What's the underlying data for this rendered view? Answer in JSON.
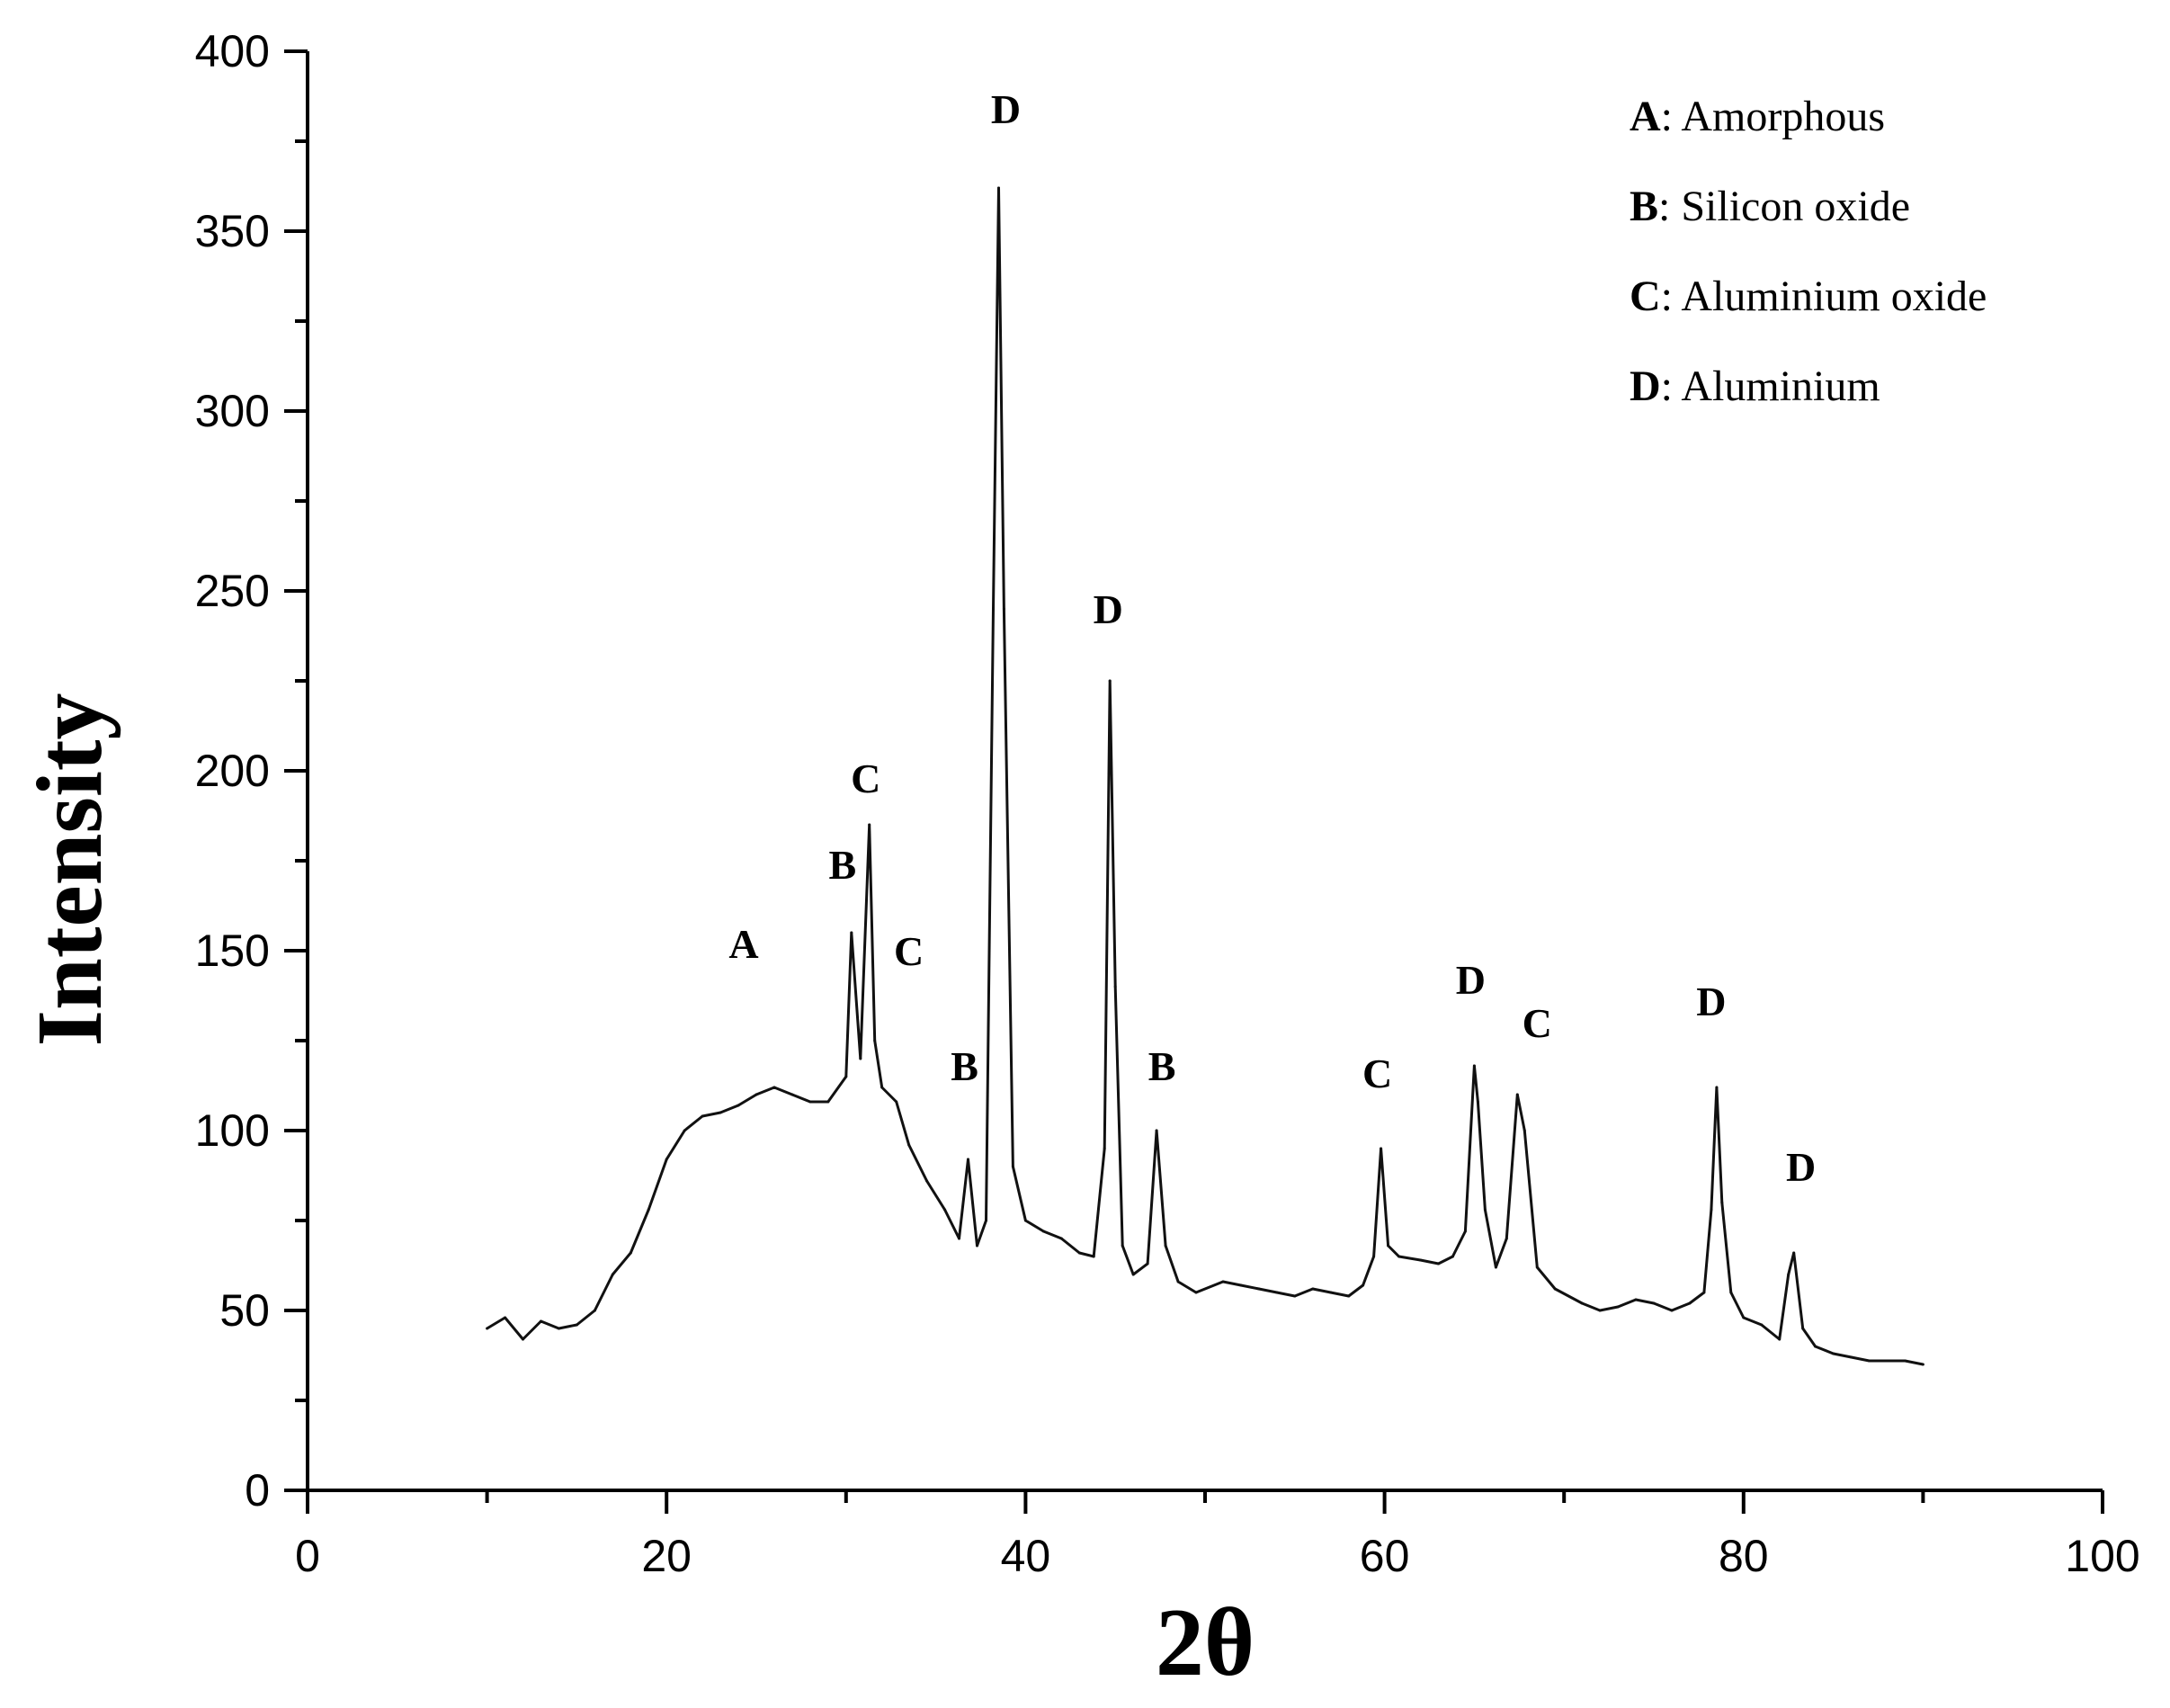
{
  "chart_data": {
    "type": "line",
    "xlabel": "2θ",
    "ylabel": "Intensity",
    "xlim": [
      0,
      100
    ],
    "ylim": [
      0,
      400
    ],
    "x_ticks": [
      0,
      20,
      40,
      60,
      80,
      100
    ],
    "y_ticks": [
      0,
      50,
      100,
      150,
      200,
      250,
      300,
      350,
      400
    ],
    "grid": false,
    "series": [
      {
        "x": [
          10,
          11,
          12,
          13,
          14,
          15,
          16,
          17,
          18,
          19,
          20,
          21,
          22,
          23,
          24,
          25,
          26,
          27,
          28,
          29,
          30,
          30.3,
          30.8,
          31.3,
          31.6,
          32,
          32.8,
          33.5,
          34.5,
          35.5,
          36.3,
          36.8,
          37.3,
          37.8,
          38.2,
          38.5,
          38.8,
          39.3,
          40,
          41,
          42,
          43,
          43.8,
          44.4,
          44.7,
          45,
          45.4,
          46,
          46.8,
          47.3,
          47.8,
          48.5,
          49.5,
          51,
          52,
          53,
          54,
          55,
          56,
          57,
          58,
          58.8,
          59.4,
          59.8,
          60.2,
          60.8,
          62,
          63,
          63.8,
          64.5,
          65,
          65.2,
          65.6,
          66.2,
          66.8,
          67.4,
          67.8,
          68.5,
          69.5,
          71,
          72,
          73,
          74,
          75,
          76,
          77,
          77.8,
          78.2,
          78.5,
          78.8,
          79.3,
          80,
          81,
          82,
          82.5,
          82.8,
          83.3,
          84,
          85,
          86,
          87,
          88,
          89,
          90
        ],
        "y": [
          45,
          48,
          42,
          47,
          45,
          46,
          50,
          60,
          66,
          78,
          92,
          100,
          104,
          105,
          107,
          110,
          112,
          110,
          108,
          108,
          115,
          155,
          120,
          185,
          125,
          112,
          108,
          96,
          86,
          78,
          70,
          92,
          68,
          75,
          245,
          362,
          245,
          90,
          75,
          72,
          70,
          66,
          65,
          95,
          225,
          140,
          68,
          60,
          63,
          100,
          68,
          58,
          55,
          58,
          57,
          56,
          55,
          54,
          56,
          55,
          54,
          57,
          65,
          95,
          68,
          65,
          64,
          63,
          65,
          72,
          118,
          108,
          78,
          62,
          70,
          110,
          100,
          62,
          56,
          52,
          50,
          51,
          53,
          52,
          50,
          52,
          55,
          78,
          112,
          80,
          55,
          48,
          46,
          42,
          60,
          66,
          45,
          40,
          38,
          37,
          36,
          36,
          36,
          35
        ]
      }
    ],
    "peak_labels": [
      {
        "text": "A",
        "x": 24.3,
        "y": 148
      },
      {
        "text": "B",
        "x": 29.8,
        "y": 170
      },
      {
        "text": "C",
        "x": 31.1,
        "y": 194
      },
      {
        "text": "C",
        "x": 33.5,
        "y": 146
      },
      {
        "text": "B",
        "x": 36.6,
        "y": 114
      },
      {
        "text": "D",
        "x": 38.9,
        "y": 380
      },
      {
        "text": "D",
        "x": 44.6,
        "y": 241
      },
      {
        "text": "B",
        "x": 47.6,
        "y": 114
      },
      {
        "text": "C",
        "x": 59.6,
        "y": 112
      },
      {
        "text": "D",
        "x": 64.8,
        "y": 138
      },
      {
        "text": "C",
        "x": 68.5,
        "y": 126
      },
      {
        "text": "D",
        "x": 78.2,
        "y": 132
      },
      {
        "text": "D",
        "x": 83.2,
        "y": 86
      }
    ],
    "legend": {
      "placement": "top-right",
      "entries": [
        {
          "key": "A",
          "label": ": Amorphous"
        },
        {
          "key": "B",
          "label": ": Silicon  oxide"
        },
        {
          "key": "C",
          "label": ": Aluminium  oxide"
        },
        {
          "key": "D",
          "label": ": Aluminium"
        }
      ]
    }
  }
}
